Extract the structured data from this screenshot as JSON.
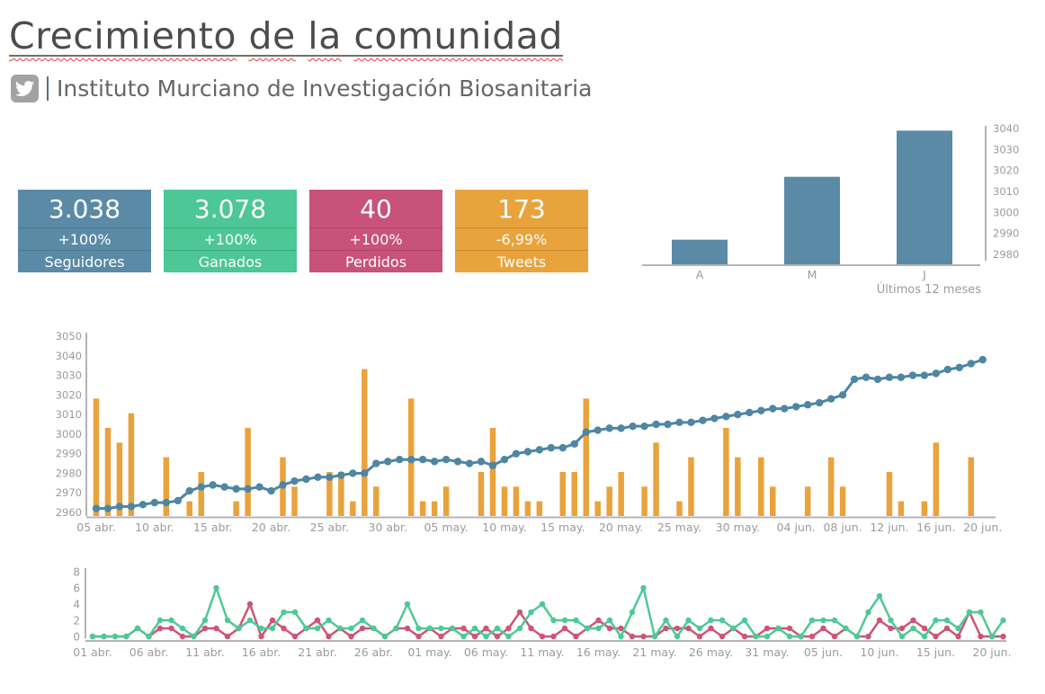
{
  "header": {
    "title": "Crecimiento de la comunidad",
    "account": "Instituto Murciano de Investigación Biosanitaria",
    "network_icon": "twitter-bird"
  },
  "colors": {
    "card_blue": "#5B8AA6",
    "card_green": "#4CC795",
    "card_pink": "#C8527A",
    "card_orange": "#E8A33D",
    "line_blue": "#4E86A3",
    "bar_orange": "#E8A33D",
    "line_green": "#4FC897",
    "line_pink": "#CC5578",
    "axis_text": "#9B9B9B",
    "axis_line": "#B4B4B4",
    "title_text": "#4C4C4C",
    "squiggle_red": "#E23B3B"
  },
  "stat_cards": [
    {
      "value": "3.038",
      "change": "+100%",
      "label": "Seguidores",
      "color": "#5B8AA6"
    },
    {
      "value": "3.078",
      "change": "+100%",
      "label": "Ganados",
      "color": "#4CC795"
    },
    {
      "value": "40",
      "change": "+100%",
      "label": "Perdidos",
      "color": "#C8527A"
    },
    {
      "value": "173",
      "change": "-6,99%",
      "label": "Tweets",
      "color": "#E8A33D"
    }
  ],
  "chart_data": [
    {
      "id": "followers-by-month",
      "type": "bar",
      "categories": [
        "A",
        "M",
        "J"
      ],
      "values": [
        2987,
        3017,
        3039
      ],
      "title": "",
      "xlabel": "Últimos 12 meses",
      "ylabel": "",
      "ylim": [
        2980,
        3040
      ],
      "yticks": [
        2980,
        2990,
        3000,
        3010,
        3020,
        3030,
        3040
      ],
      "axis_side": "right",
      "grid": false,
      "bar_color": "#5B8AA6"
    },
    {
      "id": "followers-and-tweets-daily",
      "type": "line+bar",
      "date_range": "05 abr. - 20 jun.",
      "ylim": [
        2960,
        3050
      ],
      "yticks": [
        2960,
        2970,
        2980,
        2990,
        3000,
        3010,
        3020,
        3030,
        3040,
        3050
      ],
      "x_ticks": [
        {
          "label": "05 abr.",
          "i": 0
        },
        {
          "label": "10 abr.",
          "i": 5
        },
        {
          "label": "15 abr.",
          "i": 10
        },
        {
          "label": "20 abr.",
          "i": 15
        },
        {
          "label": "25 abr.",
          "i": 20
        },
        {
          "label": "30 abr.",
          "i": 25
        },
        {
          "label": "05 may.",
          "i": 30
        },
        {
          "label": "10 may.",
          "i": 35
        },
        {
          "label": "15 may.",
          "i": 40
        },
        {
          "label": "20 may.",
          "i": 45
        },
        {
          "label": "25 may.",
          "i": 50
        },
        {
          "label": "30 may.",
          "i": 55
        },
        {
          "label": "04 jun.",
          "i": 60
        },
        {
          "label": "08 jun.",
          "i": 64
        },
        {
          "label": "12 jun.",
          "i": 68
        },
        {
          "label": "16 jun.",
          "i": 72
        },
        {
          "label": "20 jun.",
          "i": 76
        }
      ],
      "line_series": {
        "name": "Seguidores",
        "color": "#4E86A3",
        "values": [
          2962,
          2962,
          2963,
          2963,
          2964,
          2965,
          2965,
          2966,
          2971,
          2973,
          2974,
          2973,
          2972,
          2972,
          2973,
          2971,
          2974,
          2976,
          2977,
          2978,
          2978,
          2979,
          2980,
          2980,
          2985,
          2986,
          2987,
          2987,
          2987,
          2986,
          2987,
          2986,
          2985,
          2986,
          2984,
          2987,
          2990,
          2991,
          2992,
          2993,
          2993,
          2995,
          3001,
          3002,
          3003,
          3003,
          3004,
          3004,
          3005,
          3005,
          3006,
          3006,
          3007,
          3008,
          3009,
          3010,
          3011,
          3012,
          3013,
          3013,
          3014,
          3015,
          3016,
          3018,
          3020,
          3028,
          3029,
          3028,
          3029,
          3029,
          3030,
          3030,
          3031,
          3033,
          3034,
          3036,
          3038
        ]
      },
      "bar_series": {
        "name": "Tweets",
        "color": "#E8A33D",
        "units_per_tweet": 7.5,
        "values": [
          8,
          6,
          5,
          7,
          0,
          0,
          4,
          0,
          1,
          3,
          0,
          0,
          1,
          6,
          0,
          0,
          4,
          2,
          0,
          0,
          3,
          3,
          1,
          10,
          2,
          0,
          0,
          8,
          1,
          1,
          2,
          0,
          0,
          3,
          6,
          2,
          2,
          1,
          1,
          0,
          3,
          3,
          8,
          1,
          2,
          3,
          0,
          2,
          5,
          0,
          1,
          4,
          0,
          0,
          6,
          4,
          0,
          4,
          2,
          0,
          0,
          2,
          0,
          4,
          2,
          0,
          0,
          0,
          3,
          1,
          0,
          1,
          5,
          0,
          0,
          4,
          0
        ]
      }
    },
    {
      "id": "gained-lost-daily",
      "type": "line",
      "date_range": "01 abr. - 21 jun.",
      "ylim": [
        0,
        8
      ],
      "yticks": [
        8,
        6,
        4,
        2,
        0
      ],
      "x_ticks": [
        {
          "label": "01 abr.",
          "i": 0
        },
        {
          "label": "06 abr.",
          "i": 5
        },
        {
          "label": "11 abr.",
          "i": 10
        },
        {
          "label": "16 abr.",
          "i": 15
        },
        {
          "label": "21 abr.",
          "i": 20
        },
        {
          "label": "26 abr.",
          "i": 25
        },
        {
          "label": "01 may.",
          "i": 30
        },
        {
          "label": "06 may.",
          "i": 35
        },
        {
          "label": "11 may.",
          "i": 40
        },
        {
          "label": "16 may.",
          "i": 45
        },
        {
          "label": "21 may.",
          "i": 50
        },
        {
          "label": "26 may.",
          "i": 55
        },
        {
          "label": "31 may.",
          "i": 60
        },
        {
          "label": "05 jun.",
          "i": 65
        },
        {
          "label": "10 jun.",
          "i": 70
        },
        {
          "label": "15 jun.",
          "i": 75
        },
        {
          "label": "20 jun.",
          "i": 80
        }
      ],
      "series": [
        {
          "name": "Ganados",
          "color": "#4FC897",
          "values": [
            0,
            0,
            0,
            0,
            1,
            0,
            2,
            2,
            1,
            0,
            2,
            6,
            2,
            1,
            2,
            1,
            1,
            3,
            3,
            1,
            1,
            2,
            1,
            1,
            2,
            1,
            0,
            1,
            4,
            1,
            1,
            1,
            1,
            0,
            1,
            0,
            1,
            0,
            1,
            3,
            4,
            2,
            2,
            2,
            1,
            1,
            2,
            0,
            3,
            6,
            0,
            2,
            0,
            2,
            1,
            2,
            2,
            1,
            2,
            0,
            0,
            1,
            0,
            0,
            2,
            2,
            2,
            1,
            0,
            3,
            5,
            2,
            0,
            1,
            0,
            2,
            2,
            1,
            3,
            3,
            0,
            2
          ]
        },
        {
          "name": "Perdidos",
          "color": "#CC5578",
          "values": [
            0,
            0,
            0,
            0,
            1,
            0,
            1,
            1,
            0,
            0,
            1,
            1,
            0,
            1,
            4,
            0,
            2,
            1,
            0,
            1,
            2,
            0,
            1,
            0,
            1,
            1,
            0,
            1,
            1,
            0,
            1,
            0,
            1,
            1,
            0,
            1,
            0,
            1,
            3,
            1,
            0,
            0,
            1,
            0,
            1,
            2,
            1,
            1,
            0,
            0,
            0,
            1,
            1,
            1,
            0,
            1,
            0,
            1,
            0,
            0,
            1,
            1,
            1,
            0,
            0,
            1,
            0,
            1,
            0,
            0,
            2,
            1,
            1,
            2,
            1,
            0,
            1,
            0,
            3,
            0,
            0,
            0
          ]
        }
      ]
    }
  ]
}
